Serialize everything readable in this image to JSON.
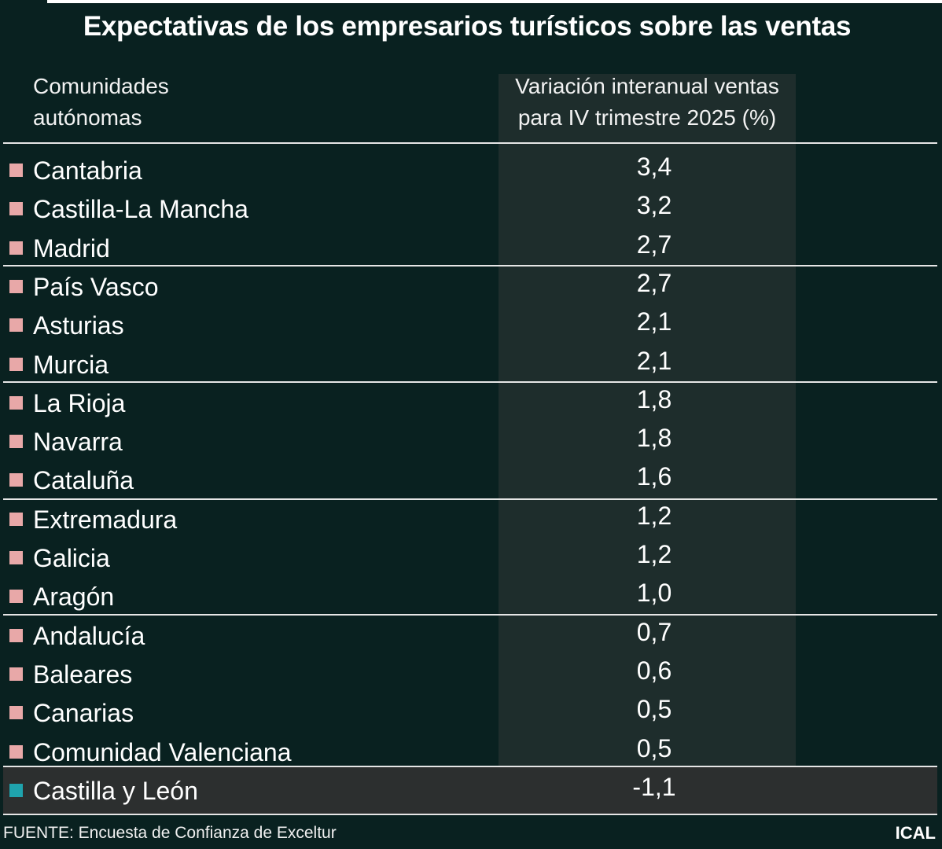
{
  "header": {
    "title": "Expectativas de los empresarios turísticos sobre las ventas",
    "col_region": [
      "Comunidades",
      "autónomas"
    ],
    "col_value": [
      "Variación interanual ventas",
      "para IV trimestre 2025 (%)"
    ]
  },
  "colors": {
    "default_marker": "#e8a8a8",
    "highlight_marker": "#1fa3ad"
  },
  "chart_data": {
    "type": "table",
    "title": "Expectativas de los empresarios turísticos sobre las ventas",
    "columns": [
      "Comunidades autónomas",
      "Variación interanual ventas para IV trimestre 2025 (%)"
    ],
    "rows": [
      {
        "region": "Cantabria",
        "value": "3,4"
      },
      {
        "region": "Castilla-La Mancha",
        "value": "3,2"
      },
      {
        "region": "Madrid",
        "value": "2,7"
      },
      {
        "region": "País Vasco",
        "value": "2,7"
      },
      {
        "region": "Asturias",
        "value": "2,1"
      },
      {
        "region": "Murcia",
        "value": "2,1"
      },
      {
        "region": "La Rioja",
        "value": "1,8"
      },
      {
        "region": "Navarra",
        "value": "1,8"
      },
      {
        "region": "Cataluña",
        "value": "1,6"
      },
      {
        "region": "Extremadura",
        "value": "1,2"
      },
      {
        "region": "Galicia",
        "value": "1,2"
      },
      {
        "region": "Aragón",
        "value": "1,0"
      },
      {
        "region": "Andalucía",
        "value": "0,7"
      },
      {
        "region": "Baleares",
        "value": "0,6"
      },
      {
        "region": "Canarias",
        "value": "0,5"
      },
      {
        "region": "Comunidad Valenciana",
        "value": "0,5"
      },
      {
        "region": "Castilla y León",
        "value": "-1,1",
        "highlight": true
      }
    ]
  },
  "footer": {
    "source": "FUENTE: Encuesta de Confianza de Exceltur",
    "brand": "ICAL"
  }
}
